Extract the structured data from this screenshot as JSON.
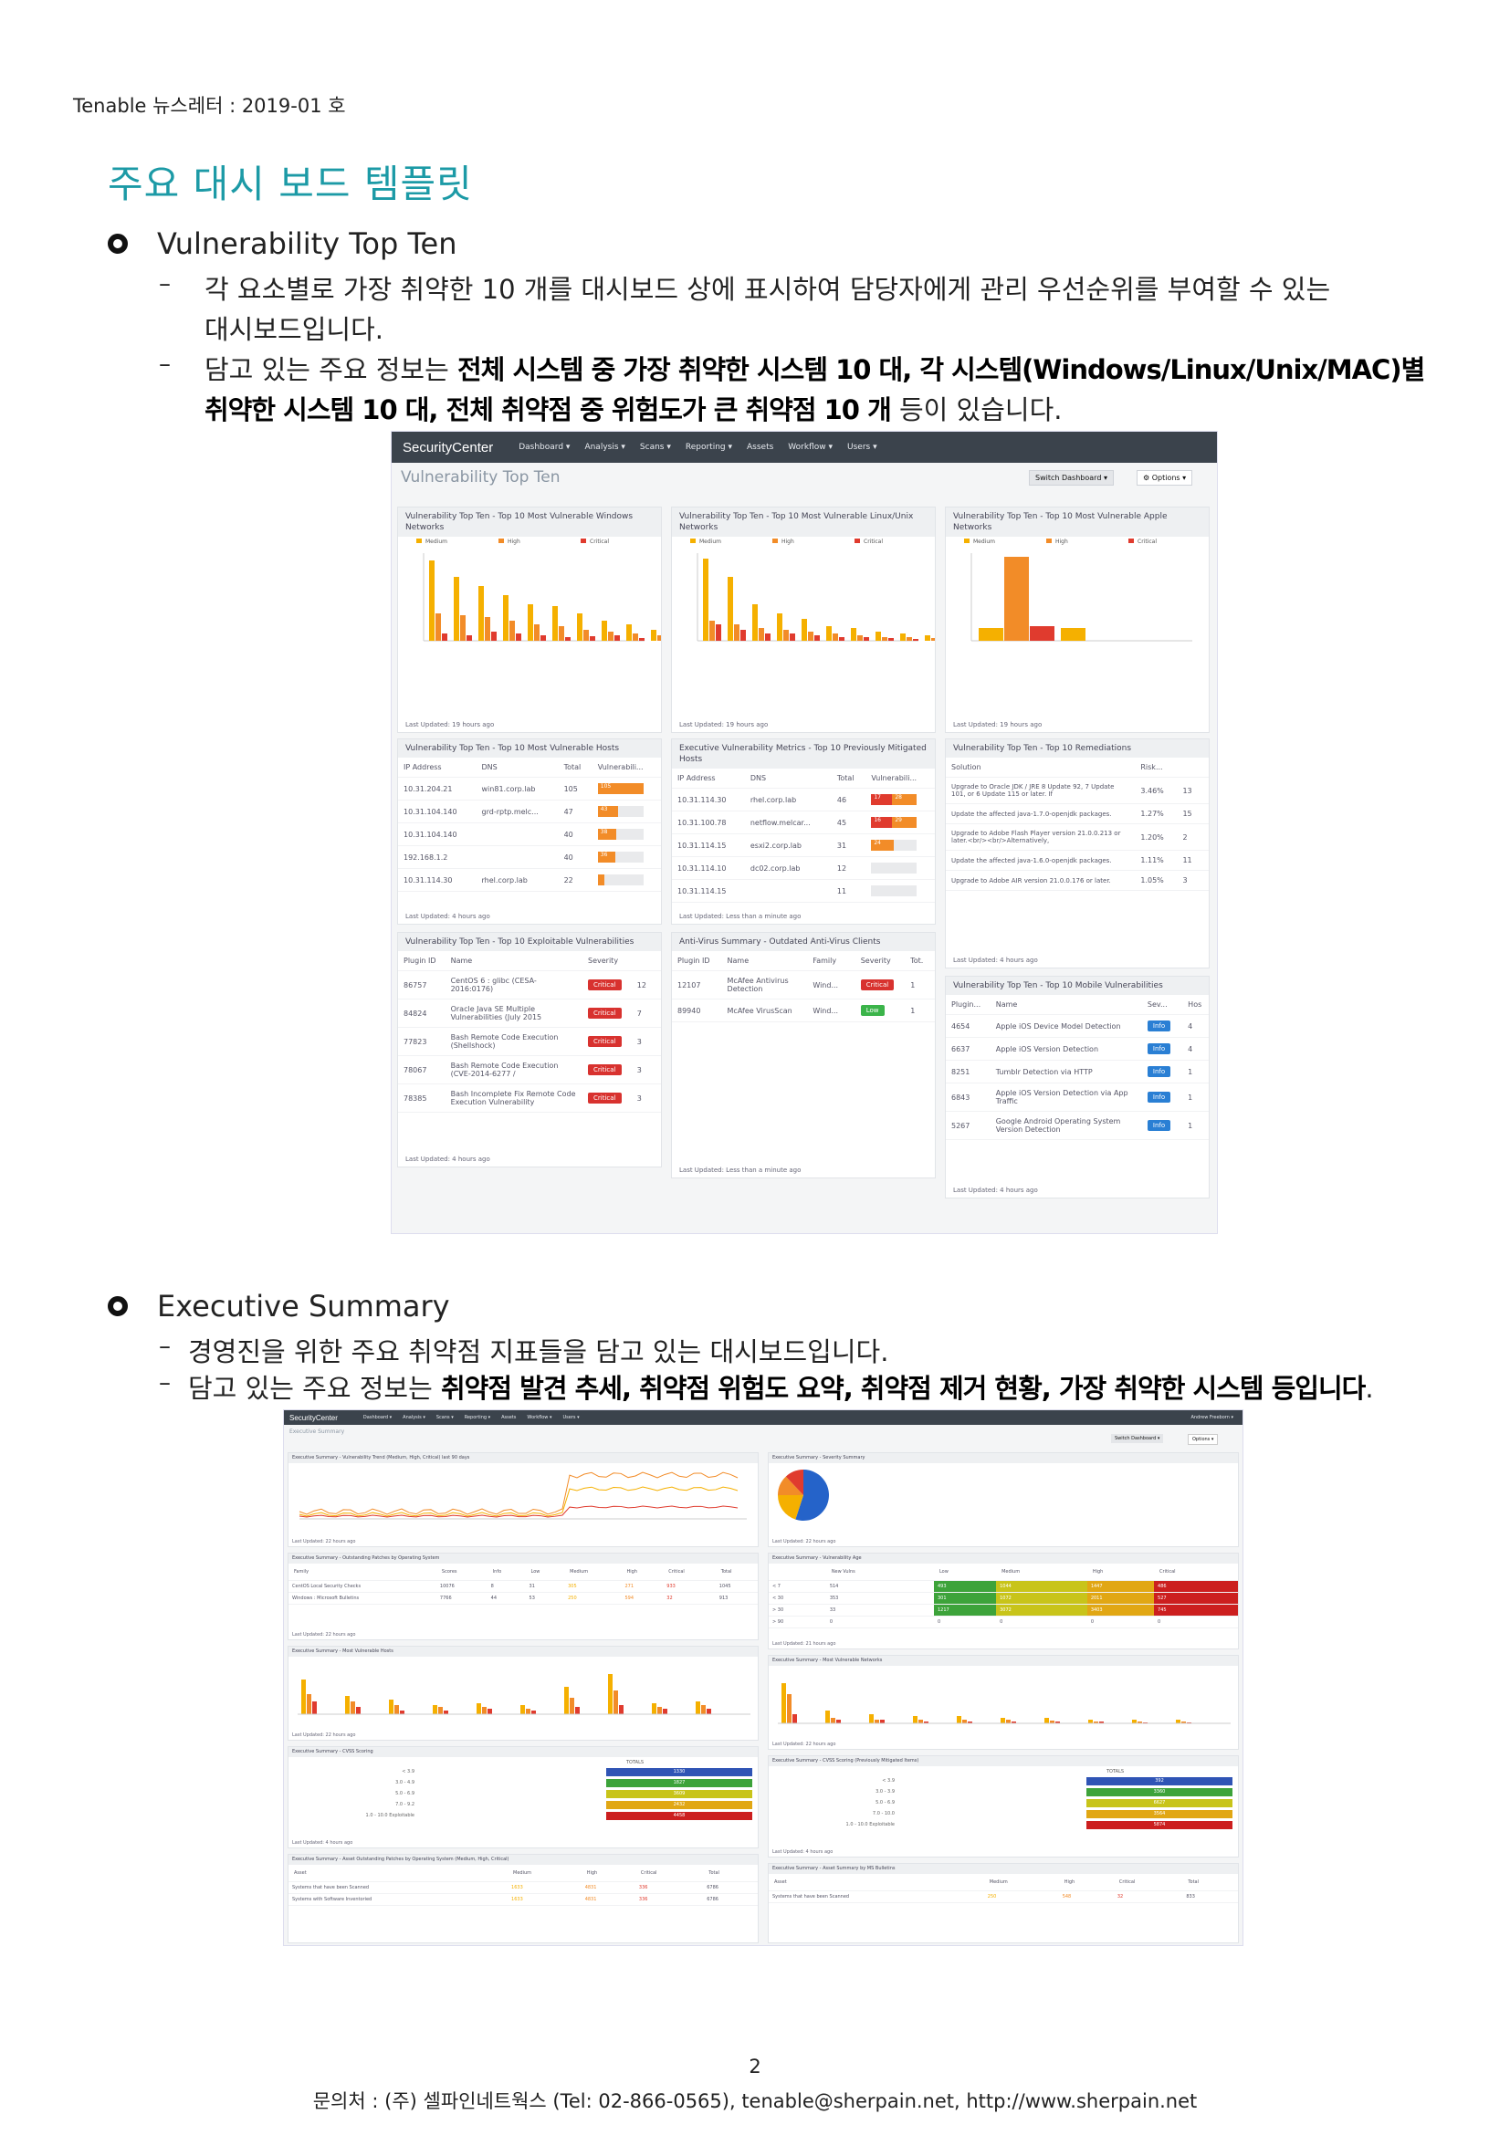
{
  "header": "Tenable 뉴스레터 : 2019-01 호",
  "title": "주요 대시 보드 템플릿",
  "section1": {
    "heading": "Vulnerability Top Ten",
    "line1a": "각 요소별로 가장 취약한 10 개를 대시보드 상에 표시하여 담당자에게 관리 우선순위를 부여할 수 있는",
    "line1b": "대시보드입니다.",
    "line2_pre": "담고 있는 주요 정보는 ",
    "line2_bold": "전체 시스템 중 가장 취약한 시스템 10 대, 각 시스템(Windows/Linux/Unix/MAC)별",
    "line3_bold": "취약한 시스템 10 대, 전체 취약점 중 위험도가 큰 취약점 10 개",
    "line3_post": " 등이 있습니다."
  },
  "section2": {
    "heading": "Executive Summary",
    "line1": "경영진을 위한 주요 취약점 지표들을 담고 있는 대시보드입니다.",
    "line2_pre": "담고 있는 주요 정보는 ",
    "line2_bold": "취약점 발견 추세, 취약점 위험도 요약, 취약점 제거 현황, 가장 취약한 시스템 등입니다",
    "line2_post": "."
  },
  "shot1": {
    "brand": "SecurityCenter",
    "menu": [
      "Dashboard ▾",
      "Analysis ▾",
      "Scans ▾",
      "Reporting ▾",
      "Assets",
      "Workflow ▾",
      "Users ▾"
    ],
    "page_title": "Vulnerability Top Ten",
    "switch_btn": "Switch Dashboard ▾",
    "options_btn": "⚙ Options ▾",
    "legend": [
      "Medium",
      "High",
      "Critical"
    ],
    "panels": {
      "p1": "Vulnerability Top Ten - Top 10 Most Vulnerable Windows Networks",
      "p2": "Vulnerability Top Ten - Top 10 Most Vulnerable Linux/Unix Networks",
      "p3": "Vulnerability Top Ten - Top 10 Most Vulnerable Apple Networks",
      "p4": "Vulnerability Top Ten - Top 10 Most Vulnerable Hosts",
      "p5": "Executive Vulnerability Metrics - Top 10 Previously Mitigated Hosts",
      "p6": "Vulnerability Top Ten - Top 10 Remediations",
      "p7": "Vulnerability Top Ten - Top 10 Exploitable Vulnerabilities",
      "p8": "Anti-Virus Summary - Outdated Anti-Virus Clients",
      "p9": "Vulnerability Top Ten - Top 10 Mobile Vulnerabilities"
    },
    "updated": {
      "p1": "Last Updated: 19 hours ago",
      "p2": "Last Updated: 19 hours ago",
      "p3": "Last Updated: 19 hours ago",
      "p4": "Last Updated: 4 hours ago",
      "p5": "Last Updated: Less than a minute ago",
      "p6": "Last Updated: 4 hours ago",
      "p7": "Last Updated: 4 hours ago",
      "p8": "Last Updated: Less than a minute ago",
      "p9": "Last Updated: 4 hours ago"
    },
    "hosts_headers": [
      "IP Address",
      "DNS",
      "Total",
      "Vulnerabili..."
    ],
    "hosts": [
      {
        "ip": "10.31.204.21",
        "dns": "win81.corp.lab",
        "total": "105",
        "bar": "105",
        "pct": 1.0
      },
      {
        "ip": "10.31.104.140",
        "dns": "grd-rptp.melc...",
        "total": "47",
        "bar": "43",
        "pct": 0.45
      },
      {
        "ip": "10.31.104.140",
        "dns": "",
        "total": "40",
        "bar": "38",
        "pct": 0.4
      },
      {
        "ip": "192.168.1.2",
        "dns": "",
        "total": "40",
        "bar": "36",
        "pct": 0.38
      },
      {
        "ip": "10.31.114.30",
        "dns": "rhel.corp.lab",
        "total": "22",
        "bar": "",
        "pct": 0.15
      }
    ],
    "mitig_headers": [
      "IP Address",
      "DNS",
      "Total",
      "Vulnerabili..."
    ],
    "mitig": [
      {
        "ip": "10.31.114.30",
        "dns": "rhel.corp.lab",
        "total": "46",
        "a": "17",
        "b": "28"
      },
      {
        "ip": "10.31.100.78",
        "dns": "netflow.melcar...",
        "total": "45",
        "a": "16",
        "b": "29"
      },
      {
        "ip": "10.31.114.15",
        "dns": "esxi2.corp.lab",
        "total": "31",
        "a": "",
        "b": "24"
      },
      {
        "ip": "10.31.114.10",
        "dns": "dc02.corp.lab",
        "total": "12",
        "a": "",
        "b": ""
      },
      {
        "ip": "10.31.114.15",
        "dns": "",
        "total": "11",
        "a": "",
        "b": ""
      }
    ],
    "remed_headers": [
      "Solution",
      "Risk...",
      ""
    ],
    "remed": [
      {
        "s": "Upgrade to Oracle JDK / JRE 8 Update 92, 7 Update 101, or 6 Update 115 or later. If",
        "r": "3.46%",
        "n": "13"
      },
      {
        "s": "Update the affected java-1.7.0-openjdk packages.",
        "r": "1.27%",
        "n": "15"
      },
      {
        "s": "Upgrade to Adobe Flash Player version 21.0.0.213 or later.<br/><br/>Alternatively,",
        "r": "1.20%",
        "n": "2"
      },
      {
        "s": "Update the affected java-1.6.0-openjdk packages.",
        "r": "1.11%",
        "n": "11"
      },
      {
        "s": "Upgrade to Adobe AIR version 21.0.0.176 or later.",
        "r": "1.05%",
        "n": "3"
      }
    ],
    "exploit_headers": [
      "Plugin ID",
      "Name",
      "Severity",
      ""
    ],
    "exploit": [
      {
        "id": "86757",
        "name": "CentOS 6 : glibc (CESA-2016:0176)",
        "sev": "Critical",
        "n": "12"
      },
      {
        "id": "84824",
        "name": "Oracle Java SE Multiple Vulnerabilities (July 2015",
        "sev": "Critical",
        "n": "7"
      },
      {
        "id": "77823",
        "name": "Bash Remote Code Execution (Shellshock)",
        "sev": "Critical",
        "n": "3"
      },
      {
        "id": "78067",
        "name": "Bash Remote Code Execution (CVE-2014-6277 /",
        "sev": "Critical",
        "n": "3"
      },
      {
        "id": "78385",
        "name": "Bash Incomplete Fix Remote Code Execution Vulnerability",
        "sev": "Critical",
        "n": "3"
      }
    ],
    "av_headers": [
      "Plugin ID",
      "Name",
      "Family",
      "Severity",
      "Tot."
    ],
    "av": [
      {
        "id": "12107",
        "name": "McAfee Antivirus Detection",
        "fam": "Wind...",
        "sev": "Critical",
        "n": "1"
      },
      {
        "id": "89940",
        "name": "McAfee VirusScan",
        "fam": "Wind...",
        "sev": "Low",
        "n": "1"
      }
    ],
    "mobile_headers": [
      "Plugin...",
      "Name",
      "Sev...",
      "Hos"
    ],
    "mobile": [
      {
        "id": "4654",
        "name": "Apple iOS Device Model Detection",
        "sev": "Info",
        "n": "4"
      },
      {
        "id": "6637",
        "name": "Apple iOS Version Detection",
        "sev": "Info",
        "n": "4"
      },
      {
        "id": "8251",
        "name": "Tumblr Detection via HTTP",
        "sev": "Info",
        "n": "1"
      },
      {
        "id": "6843",
        "name": "Apple iOS Version Detection via App Traffic",
        "sev": "Info",
        "n": "1"
      },
      {
        "id": "5267",
        "name": "Google Android Operating System Version Detection",
        "sev": "Info",
        "n": "1"
      }
    ]
  },
  "shot2": {
    "brand": "SecurityCenter",
    "menu": [
      "Dashboard ▾",
      "Analysis ▾",
      "Scans ▾",
      "Reporting ▾",
      "Assets",
      "Workflow ▾",
      "Users ▾"
    ],
    "user": "Andrew Freeborn ▾",
    "page_title": "Executive Summary",
    "switch_btn": "Switch Dashboard ▾",
    "options_btn": "Options ▾",
    "panels": {
      "trend": "Executive Summary - Vulnerability Trend (Medium, High, Critical) last 90 days",
      "sev": "Executive Summary - Severity Summary",
      "patches": "Executive Summary - Outstanding Patches by Operating System",
      "age": "Executive Summary - Vulnerability Age",
      "hosts": "Executive Summary - Most Vulnerable Hosts",
      "nets": "Executive Summary - Most Vulnerable Networks",
      "cvss": "Executive Summary - CVSS Scoring",
      "cvssm": "Executive Summary - CVSS Scoring (Previously Mitigated Items)",
      "asset": "Executive Summary - Asset Outstanding Patches by Operating System (Medium, High, Critical)",
      "ms": "Executive Summary - Asset Summary by MS Bulletins"
    },
    "updated": {
      "trend": "Last Updated: 22 hours ago",
      "sev": "Last Updated: 22 hours ago",
      "patches": "Last Updated: 22 hours ago",
      "age": "Last Updated: 21 hours ago",
      "hosts": "Last Updated: 22 hours ago",
      "nets": "Last Updated: 22 hours ago",
      "cvss": "Last Updated: 4 hours ago",
      "cvssm": "Last Updated: 4 hours ago"
    },
    "patch_headers": [
      "Family",
      "Scores",
      "Info",
      "Low",
      "Medium",
      "High",
      "Critical",
      "Total"
    ],
    "patch_rows": [
      [
        "CentOS Local Security Checks",
        "10076",
        "8",
        "31",
        "305",
        "271",
        "933",
        "1045"
      ],
      [
        "Windows : Microsoft Bulletins",
        "7766",
        "44",
        "53",
        "250",
        "594",
        "32",
        "913"
      ]
    ],
    "age_headers": [
      "",
      "New Vulns",
      "Low",
      "Medium",
      "High",
      "Critical"
    ],
    "age_rows": [
      [
        "< 7",
        "514",
        "493",
        "1044",
        "1447",
        "486"
      ],
      [
        "< 30",
        "353",
        "301",
        "1072",
        "2011",
        "527"
      ],
      [
        "> 30",
        "33",
        "1217",
        "3072",
        "3403",
        "745"
      ],
      [
        "> 90",
        "0",
        "0",
        "0",
        "0",
        "0"
      ]
    ],
    "cvss_header": "TOTALS",
    "cvss_rows": [
      {
        "label": "< 3.9",
        "val": "1330",
        "color": "#2f54b5"
      },
      {
        "label": "3.0 - 4.9",
        "val": "1827",
        "color": "#3da33a"
      },
      {
        "label": "5.0 - 6.9",
        "val": "3609",
        "color": "#c8c41a"
      },
      {
        "label": "7.0 - 9.2",
        "val": "2432",
        "color": "#e1a714"
      },
      {
        "label": "1.0 - 10.0 Exploitable",
        "val": "4458",
        "color": "#cc1f1f"
      }
    ],
    "cvssm_rows": [
      {
        "label": "< 3.9",
        "val": "392",
        "color": "#2f54b5"
      },
      {
        "label": "3.0 - 3.9",
        "val": "3360",
        "color": "#3da33a"
      },
      {
        "label": "5.0 - 6.9",
        "val": "6627",
        "color": "#c8c41a"
      },
      {
        "label": "7.0 - 10.0",
        "val": "3564",
        "color": "#e1a714"
      },
      {
        "label": "1.0 - 10.0 Exploitable",
        "val": "5874",
        "color": "#cc1f1f"
      }
    ],
    "asset_headers": [
      "Asset",
      "Medium",
      "High",
      "Critical",
      "Total"
    ],
    "asset_rows": [
      [
        "Systems that have been Scanned",
        "1633",
        "4831",
        "336",
        "6786"
      ],
      [
        "Systems with Software Inventoried",
        "1633",
        "4831",
        "336",
        "6786"
      ]
    ],
    "ms_headers": [
      "Asset",
      "Medium",
      "High",
      "Critical",
      "Total"
    ],
    "ms_rows": [
      [
        "Systems that have been Scanned",
        "250",
        "548",
        "32",
        "833"
      ]
    ]
  },
  "footer": {
    "page": "2",
    "contact": "문의처 : (주) 셀파인네트웍스 (Tel: 02-866-0565), tenable@sherpain.net, http://www.sherpain.net"
  },
  "colors": {
    "title": "#1c9aa6",
    "medium": "#f5b000",
    "high": "#f28c28",
    "critical": "#e03b2e"
  }
}
